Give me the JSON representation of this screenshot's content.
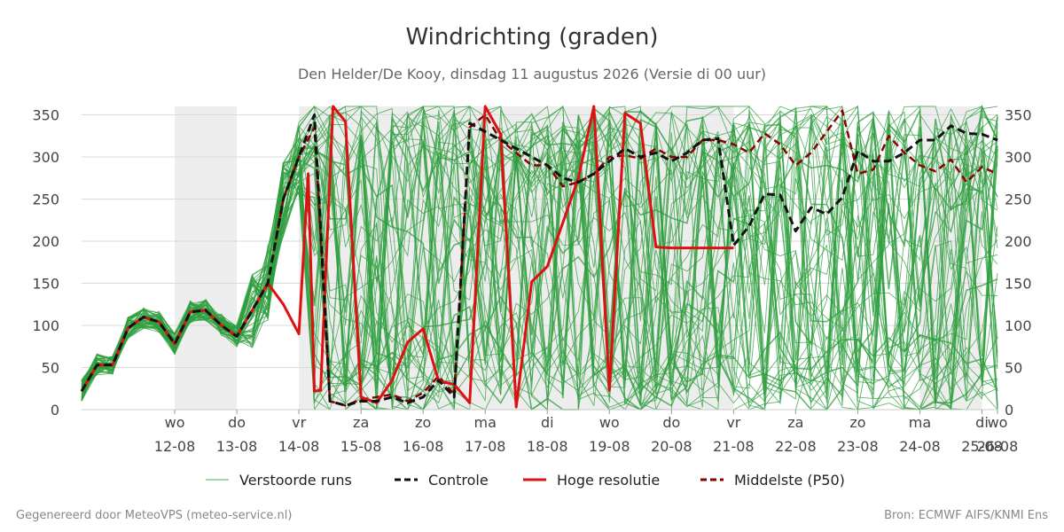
{
  "header": {
    "title": "Windrichting (graden)",
    "subtitle": "Den Helder/De Kooy, dinsdag 11 augustus 2026 (Versie di 00 uur)"
  },
  "footer": {
    "left": "Gegenereerd door MeteoVPS (meteo-service.nl)",
    "right": "Bron: ECMWF AIFS/KNMI Ens"
  },
  "chart_data": {
    "type": "line",
    "xlabel": "",
    "ylabel": "",
    "xlim": [
      -0.75,
      14.0
    ],
    "ylim": [
      0,
      360
    ],
    "yticks": [
      0,
      50,
      100,
      150,
      200,
      250,
      300,
      350
    ],
    "grid": true,
    "legend_position": "bottom",
    "x_units": "days since 11-08 00:00",
    "x_ticks": [
      {
        "x": 0.75,
        "day": "wo",
        "date": "12-08"
      },
      {
        "x": 1.75,
        "day": "do",
        "date": "13-08"
      },
      {
        "x": 2.75,
        "day": "vr",
        "date": "14-08"
      },
      {
        "x": 3.75,
        "day": "za",
        "date": "15-08"
      },
      {
        "x": 4.75,
        "day": "zo",
        "date": "16-08"
      },
      {
        "x": 5.75,
        "day": "ma",
        "date": "17-08"
      },
      {
        "x": 6.75,
        "day": "di",
        "date": "18-08"
      },
      {
        "x": 7.75,
        "day": "wo",
        "date": "19-08"
      },
      {
        "x": 8.75,
        "day": "do",
        "date": "20-08"
      },
      {
        "x": 9.75,
        "day": "vr",
        "date": "21-08"
      },
      {
        "x": 10.75,
        "day": "za",
        "date": "22-08"
      },
      {
        "x": 11.75,
        "day": "zo",
        "date": "23-08"
      },
      {
        "x": 12.75,
        "day": "ma",
        "date": "24-08"
      },
      {
        "x": 13.75,
        "day": "di",
        "date": "25-08"
      },
      {
        "x": 14.75,
        "day": "wo",
        "date": "26-08"
      }
    ],
    "shaded_periods": [
      [
        0.75,
        1.75
      ],
      [
        2.75,
        9.75
      ],
      [
        12.75,
        13.75
      ]
    ],
    "legend": [
      {
        "label": "Verstoorde runs",
        "color": "#4caf50",
        "style": "thin"
      },
      {
        "label": "Controle",
        "color": "#111111",
        "style": "dashed"
      },
      {
        "label": "Hoge resolutie",
        "color": "#dd1111",
        "style": "solid"
      },
      {
        "label": "Middelste (P50)",
        "color": "#8b0000",
        "style": "dashed"
      }
    ],
    "series": [
      {
        "name": "Controle",
        "color": "#111111",
        "x": [
          -0.75,
          -0.5,
          -0.25,
          0,
          0.25,
          0.5,
          0.75,
          1,
          1.25,
          1.5,
          1.75,
          2,
          2.25,
          2.5,
          2.75,
          3,
          3.25,
          3.5,
          3.75,
          4,
          4.25,
          4.5,
          4.75,
          5,
          5.25,
          5.5,
          5.75,
          6,
          6.25,
          6.5,
          6.75,
          7,
          7.25,
          7.5,
          7.75,
          8,
          8.25,
          8.5,
          8.75,
          9,
          9.25,
          9.5,
          9.75,
          10,
          10.25,
          10.5,
          10.75,
          11,
          11.25,
          11.5,
          11.75,
          12,
          12.25,
          12.5,
          12.75,
          13,
          13.25,
          13.5,
          13.75,
          14
        ],
        "y": [
          22,
          53,
          53,
          97,
          110,
          104,
          78,
          116,
          118,
          100,
          87,
          118,
          150,
          250,
          300,
          350,
          10,
          5,
          10,
          10,
          15,
          8,
          15,
          35,
          15,
          340,
          330,
          320,
          310,
          300,
          290,
          275,
          270,
          280,
          295,
          310,
          300,
          305,
          295,
          305,
          320,
          322,
          195,
          218,
          256,
          255,
          212,
          240,
          232,
          252,
          307,
          295,
          295,
          305,
          320,
          320,
          337,
          328,
          327,
          320
        ]
      },
      {
        "name": "Hoge resolutie",
        "color": "#dd1111",
        "x": [
          -0.75,
          -0.5,
          -0.25,
          0,
          0.25,
          0.5,
          0.75,
          1,
          1.25,
          1.5,
          1.75,
          2,
          2.25,
          2.5,
          2.75,
          2.9,
          3.0,
          3.1,
          3.3,
          3.5,
          3.75,
          4,
          4.25,
          4.5,
          4.75,
          5,
          5.25,
          5.5,
          5.75,
          6,
          6.25,
          6.5,
          6.75,
          7,
          7.25,
          7.5,
          7.75,
          8,
          8.25,
          8.5,
          8.75,
          9,
          9.25,
          9.5,
          9.75
        ],
        "y": [
          22,
          53,
          53,
          97,
          110,
          104,
          78,
          116,
          118,
          100,
          87,
          118,
          150,
          125,
          90,
          280,
          22,
          23,
          360,
          342,
          15,
          8,
          35,
          80,
          96,
          34,
          30,
          8,
          360,
          327,
          3,
          152,
          170,
          222,
          275,
          360,
          23,
          352,
          340,
          193,
          192,
          192,
          192,
          192,
          192
        ]
      },
      {
        "name": "Middelste (P50)",
        "color": "#8b0000",
        "x": [
          -0.75,
          -0.5,
          -0.25,
          0,
          0.25,
          0.5,
          0.75,
          1,
          1.25,
          1.5,
          1.75,
          2,
          2.25,
          2.5,
          2.75,
          3,
          3.25,
          3.5,
          3.75,
          4,
          4.25,
          4.5,
          4.75,
          5,
          5.25,
          5.5,
          5.75,
          6,
          6.25,
          6.5,
          6.75,
          7,
          7.25,
          7.5,
          7.75,
          8,
          8.25,
          8.5,
          8.75,
          9,
          9.25,
          9.5,
          9.75,
          10,
          10.25,
          10.5,
          10.75,
          11,
          11.25,
          11.5,
          11.75,
          12,
          12.25,
          12.5,
          12.75,
          13,
          13.25,
          13.5,
          13.75,
          14
        ],
        "y": [
          22,
          53,
          53,
          97,
          110,
          104,
          78,
          116,
          118,
          100,
          87,
          118,
          150,
          250,
          300,
          335,
          10,
          5,
          12,
          15,
          18,
          10,
          20,
          40,
          18,
          335,
          350,
          320,
          305,
          290,
          290,
          265,
          270,
          280,
          300,
          302,
          298,
          310,
          300,
          300,
          320,
          320,
          315,
          305,
          328,
          315,
          290,
          305,
          330,
          355,
          280,
          285,
          325,
          305,
          290,
          283,
          297,
          270,
          288,
          280
        ]
      }
    ]
  }
}
